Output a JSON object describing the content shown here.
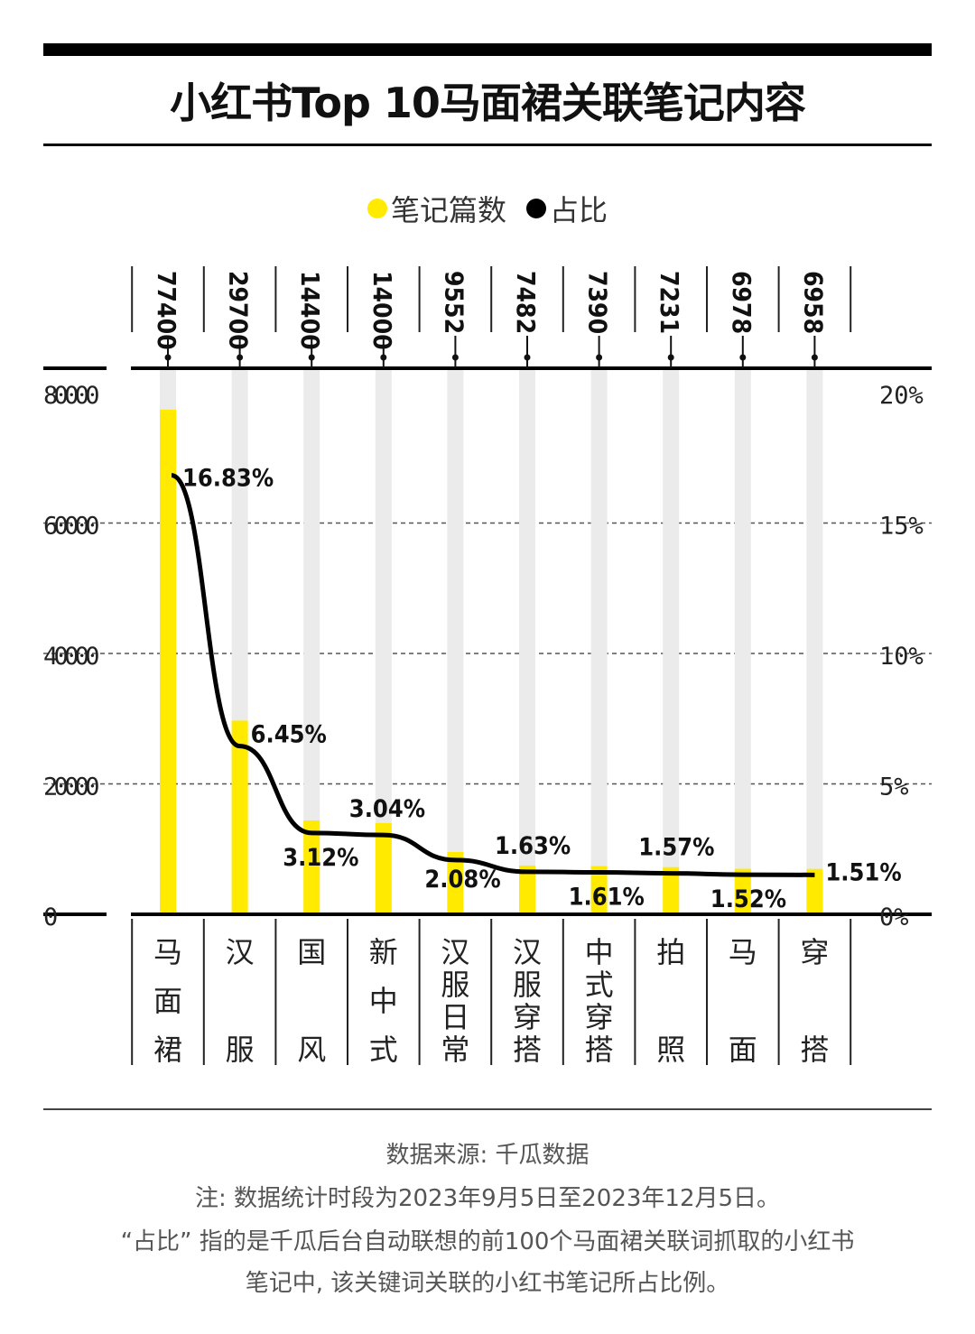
{
  "title": "小红书Top 10马面裙关联笔记内容",
  "legend": [
    {
      "label": "笔记篇数",
      "color": "#FFEA00"
    },
    {
      "label": "占比",
      "color": "#000000"
    }
  ],
  "chart_data": {
    "type": "bar",
    "categories": [
      "马面裙",
      "汉服",
      "国风",
      "新中式",
      "汉服日常",
      "汉服穿搭",
      "中式穿搭",
      "拍照",
      "马面",
      "穿搭"
    ],
    "series": [
      {
        "name": "笔记篇数",
        "type": "bar",
        "axis": "left",
        "values": [
          77400,
          29700,
          14400,
          14000,
          9552,
          7482,
          7390,
          7231,
          6978,
          6958
        ],
        "labels": [
          "77400",
          "29700",
          "14400",
          "14000",
          "9552",
          "7482",
          "7390",
          "7231",
          "6978",
          "6958"
        ],
        "color": "#FFEA00"
      },
      {
        "name": "占比",
        "type": "line",
        "axis": "right",
        "values": [
          16.83,
          6.45,
          3.12,
          3.04,
          2.08,
          1.63,
          1.61,
          1.57,
          1.52,
          1.51
        ],
        "labels": [
          "16.83%",
          "6.45%",
          "3.12%",
          "3.04%",
          "2.08%",
          "1.63%",
          "1.61%",
          "1.57%",
          "1.52%",
          "1.51%"
        ],
        "color": "#000000"
      }
    ],
    "y_left": {
      "lim": [
        0,
        80000
      ],
      "ticks": [
        "0",
        "20000",
        "40000",
        "60000",
        "80000"
      ]
    },
    "y_right": {
      "lim": [
        0,
        20
      ],
      "ticks": [
        "0%",
        "5%",
        "10%",
        "15%",
        "20%"
      ]
    },
    "grid": "dashed horizontal",
    "legend_position": "top-center",
    "track_color": "#EBEBEB"
  },
  "footer": {
    "source": "数据来源: 千瓜数据",
    "note": "注: 数据统计时段为2023年9月5日至2023年12月5日。",
    "desc_line1": "“占比” 指的是千瓜后台自动联想的前100个马面裙关联词抓取的小红书",
    "desc_line2": "笔记中, 该关键词关联的小红书笔记所占比例。"
  }
}
